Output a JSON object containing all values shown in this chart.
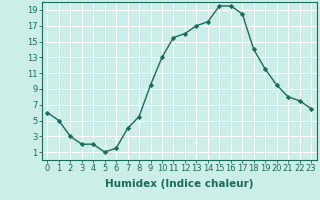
{
  "x": [
    0,
    1,
    2,
    3,
    4,
    5,
    6,
    7,
    8,
    9,
    10,
    11,
    12,
    13,
    14,
    15,
    16,
    17,
    18,
    19,
    20,
    21,
    22,
    23
  ],
  "y": [
    6,
    5,
    3,
    2,
    2,
    1,
    1.5,
    4,
    5.5,
    9.5,
    13,
    15.5,
    16,
    17,
    17.5,
    19.5,
    19.5,
    18.5,
    14,
    11.5,
    9.5,
    8,
    7.5,
    6.5
  ],
  "xlabel": "Humidex (Indice chaleur)",
  "ylabel": "",
  "xlim": [
    -0.5,
    23.5
  ],
  "ylim": [
    0,
    20
  ],
  "yticks": [
    1,
    3,
    5,
    7,
    9,
    11,
    13,
    15,
    17,
    19
  ],
  "xticks": [
    0,
    1,
    2,
    3,
    4,
    5,
    6,
    7,
    8,
    9,
    10,
    11,
    12,
    13,
    14,
    15,
    16,
    17,
    18,
    19,
    20,
    21,
    22,
    23
  ],
  "line_color": "#1a6b5a",
  "marker": "D",
  "marker_size": 2.2,
  "bg_color": "#cceee8",
  "grid_color": "#ffffff",
  "xlabel_fontsize": 7.5,
  "tick_fontsize": 6.0
}
